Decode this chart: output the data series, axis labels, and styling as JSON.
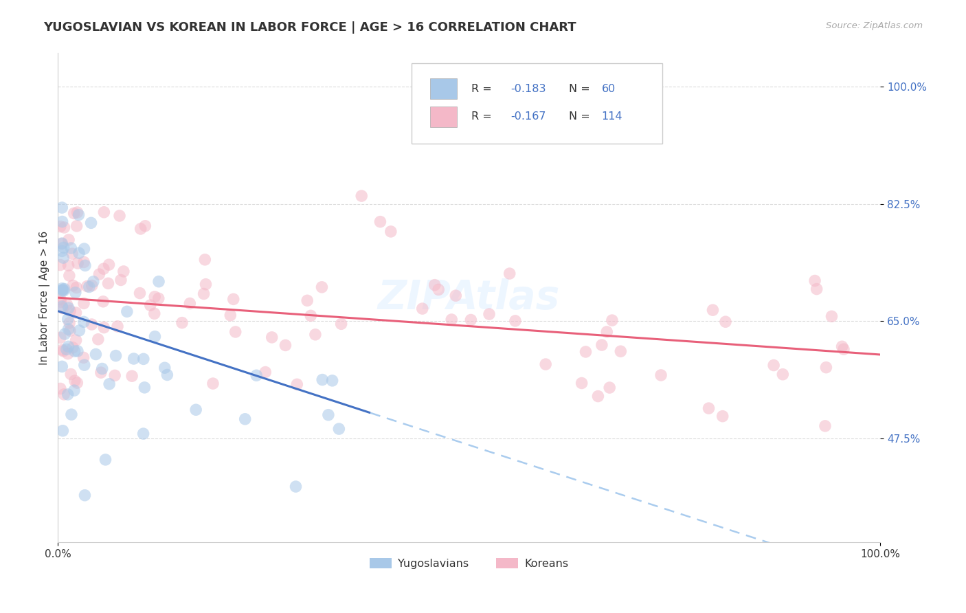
{
  "title": "YUGOSLAVIAN VS KOREAN IN LABOR FORCE | AGE > 16 CORRELATION CHART",
  "source_text": "Source: ZipAtlas.com",
  "ylabel": "In Labor Force | Age > 16",
  "xlim": [
    0.0,
    1.0
  ],
  "ylim": [
    0.32,
    1.05
  ],
  "xtick_labels": [
    "0.0%",
    "100.0%"
  ],
  "ytick_labels": [
    "47.5%",
    "65.0%",
    "82.5%",
    "100.0%"
  ],
  "ytick_values": [
    0.475,
    0.65,
    0.825,
    1.0
  ],
  "background_color": "#ffffff",
  "grid_color": "#cccccc",
  "blue_color": "#a8c8e8",
  "pink_color": "#f4b8c8",
  "blue_line_color": "#4472c4",
  "pink_line_color": "#e8607a",
  "dashed_line_color": "#aaccee",
  "scatter_alpha": 0.55,
  "scatter_size": 160,
  "legend_color": "#4472c4",
  "tick_color": "#4472c4",
  "title_color": "#333333",
  "source_color": "#aaaaaa",
  "watermark_color": "#ddeeff",
  "watermark_alpha": 0.5
}
